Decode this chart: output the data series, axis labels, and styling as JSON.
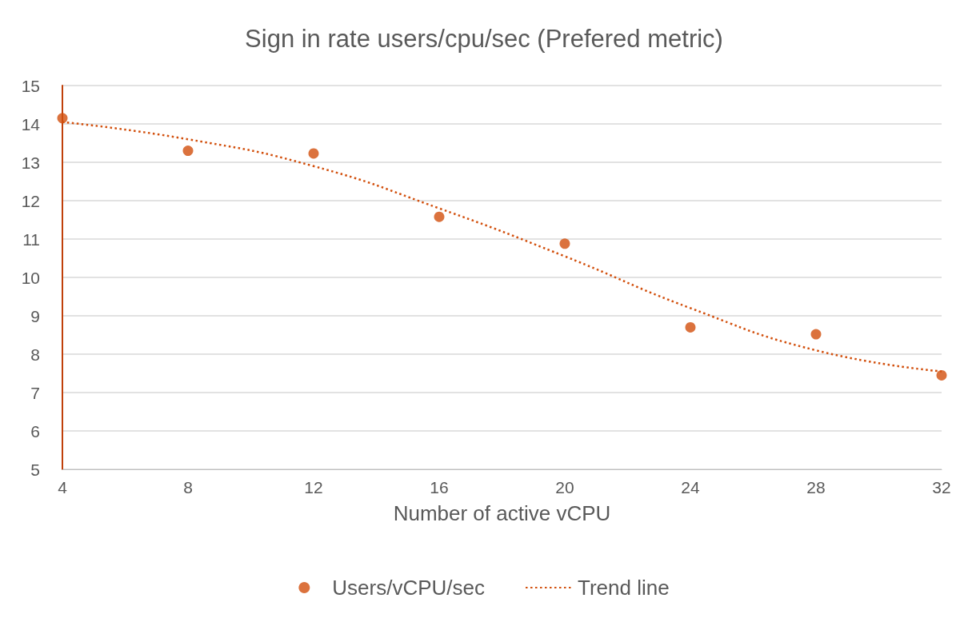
{
  "chart_data": {
    "type": "scatter",
    "title": "Sign in rate users/cpu/sec (Prefered metric)",
    "xlabel": "Number of active vCPU",
    "x": [
      4,
      8,
      12,
      16,
      20,
      24,
      28,
      32
    ],
    "series": [
      {
        "name": "Users/vCPU/sec",
        "marker": "circle",
        "color": "#d24f0c",
        "values": [
          14.15,
          13.3,
          13.23,
          11.58,
          10.88,
          8.7,
          8.52,
          7.45
        ]
      },
      {
        "name": "Trend line",
        "type": "line",
        "marker": "none",
        "line_style": "dotted",
        "color": "#d24f0c",
        "values": [
          14.05,
          13.6,
          12.9,
          11.8,
          10.55,
          9.2,
          8.1,
          7.55
        ]
      }
    ],
    "xlim": [
      4,
      32
    ],
    "xticks": [
      4,
      8,
      12,
      16,
      20,
      24,
      28,
      32
    ],
    "ylim": [
      5,
      15
    ],
    "yticks": [
      5,
      6,
      7,
      8,
      9,
      10,
      11,
      12,
      13,
      14,
      15
    ],
    "grid": "y",
    "legend": "bottom"
  }
}
